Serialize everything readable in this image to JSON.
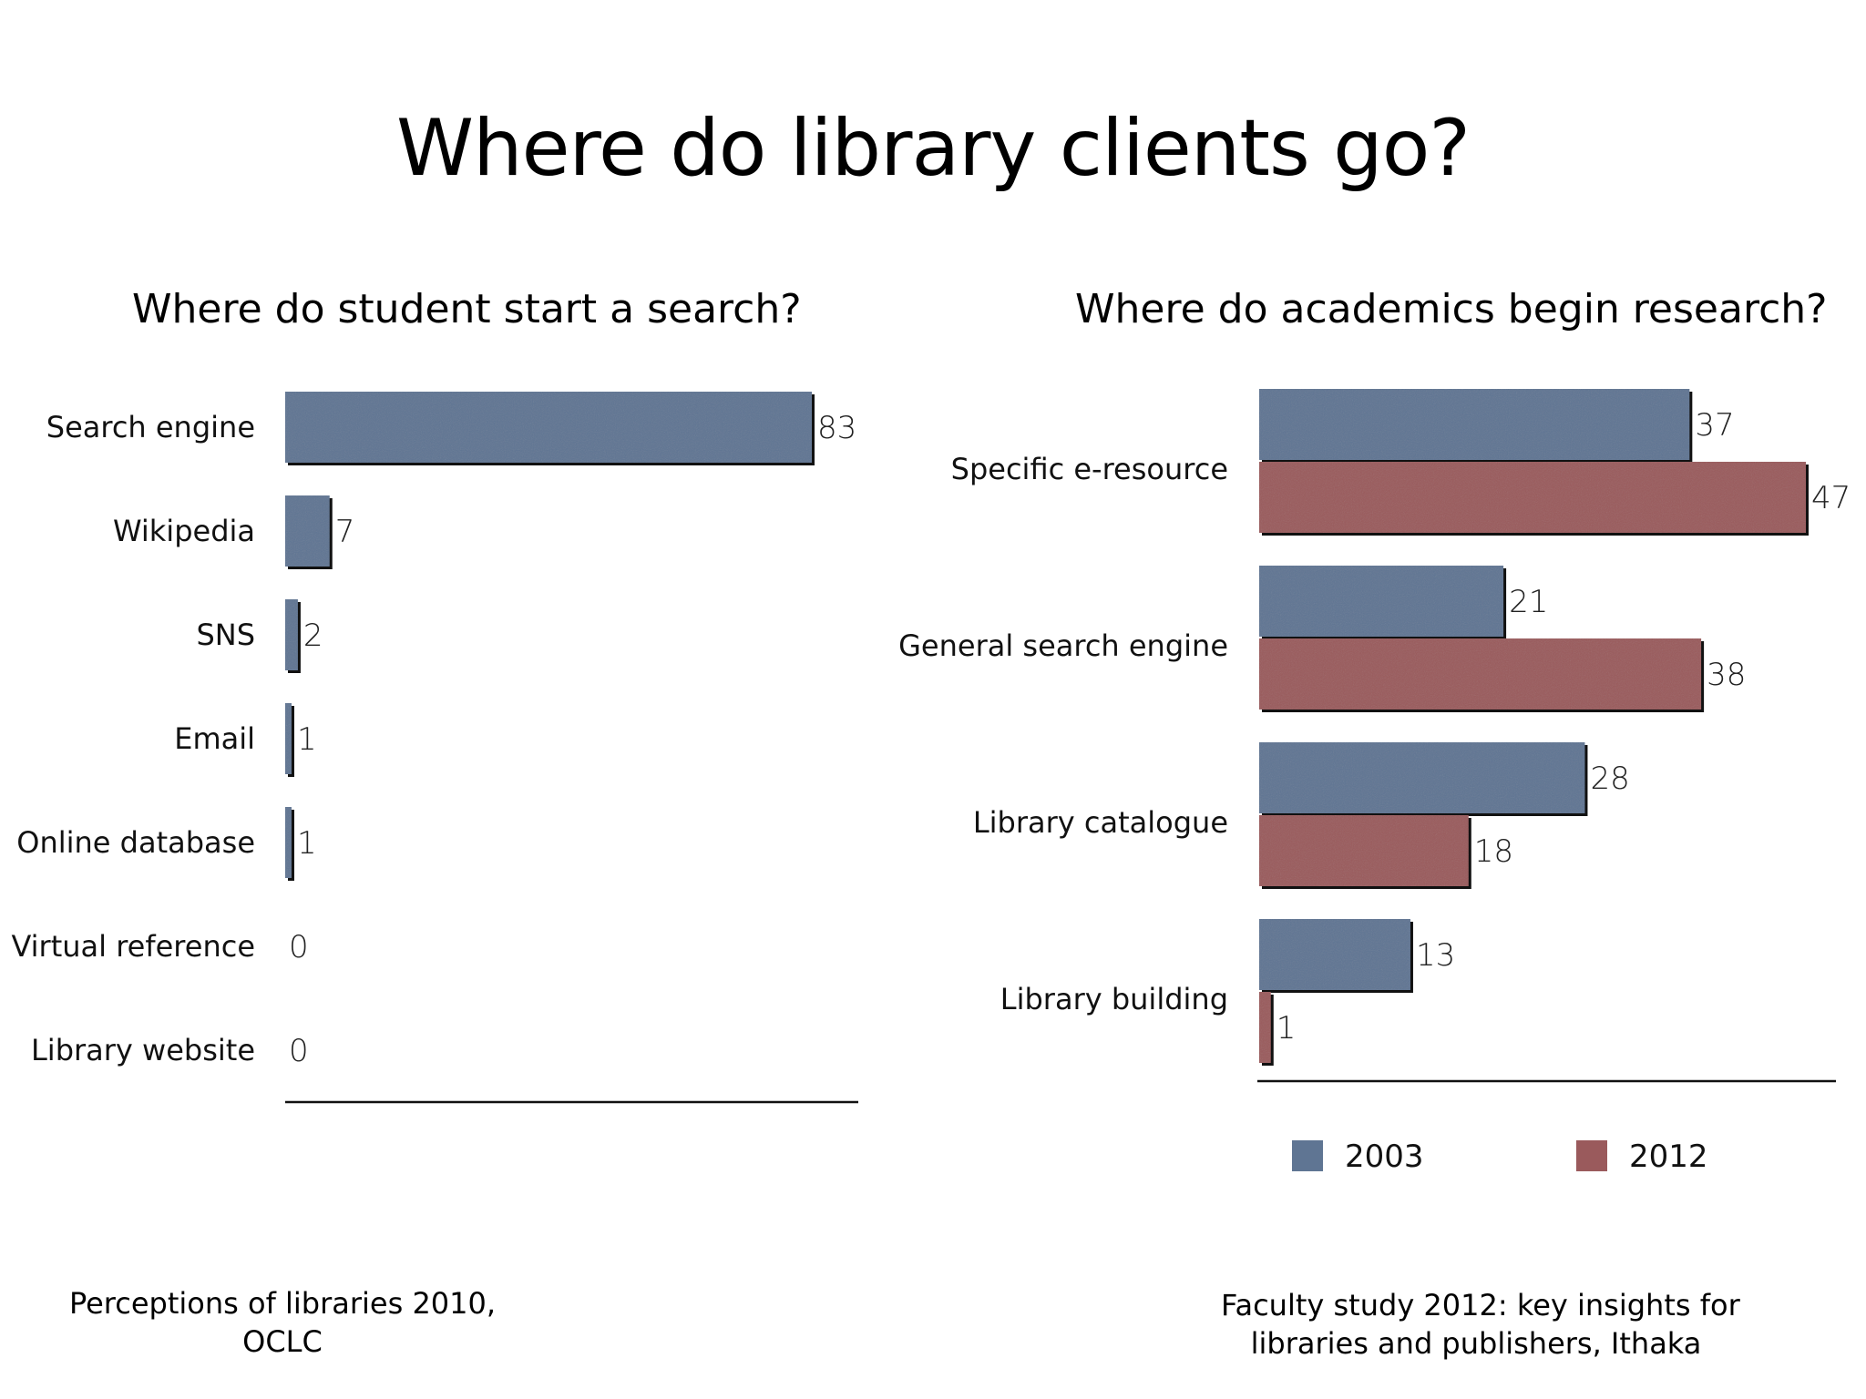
{
  "slide": {
    "title": "Where do library clients go?"
  },
  "left_source": {
    "line1": "Perceptions of libraries 2010,",
    "line2": "OCLC"
  },
  "right_source": {
    "line1": "Faculty study 2012: key insights for",
    "line2": "libraries and publishers, Ithaka"
  },
  "colors": {
    "series_2003": "#5f7593",
    "series_2012": "#9a5a5c",
    "bar_edge": "#111111"
  },
  "chart_data": [
    {
      "type": "bar",
      "orientation": "horizontal",
      "title": "Where do student start a search?",
      "categories": [
        "Search engine",
        "Wikipedia",
        "SNS",
        "Email",
        "Online database",
        "Virtual reference",
        "Library website"
      ],
      "values": [
        83,
        7,
        2,
        1,
        1,
        0,
        0
      ],
      "data_labels": [
        "83",
        "7",
        "2",
        "1",
        "1",
        "0",
        "0"
      ],
      "xlim": [
        0,
        90
      ],
      "grid": false,
      "legend": "none"
    },
    {
      "type": "bar",
      "orientation": "horizontal",
      "title": "Where do academics begin research?",
      "categories": [
        "Specific e-resource",
        "General search engine",
        "Library catalogue",
        "Library building"
      ],
      "series": [
        {
          "name": "2003",
          "values": [
            37,
            21,
            28,
            13
          ]
        },
        {
          "name": "2012",
          "values": [
            47,
            38,
            18,
            1
          ]
        }
      ],
      "xlim": [
        0,
        50
      ],
      "grid": false,
      "legend": "bottom"
    }
  ]
}
